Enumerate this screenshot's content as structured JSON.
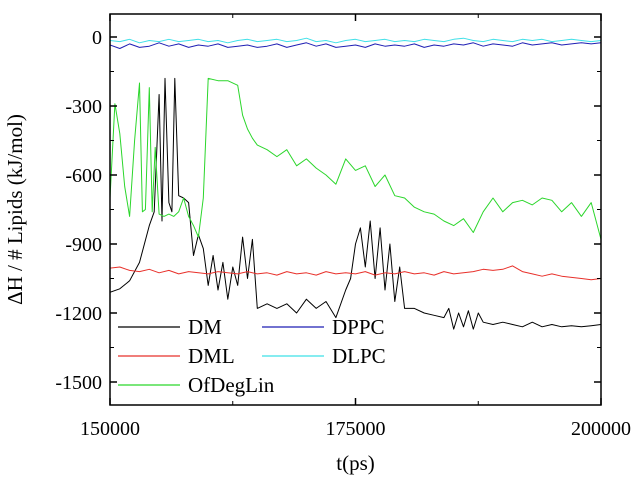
{
  "chart_data": {
    "type": "line",
    "title": "",
    "xlabel": "t(ps)",
    "ylabel": "ΔH / # Lipids (kJ/mol)",
    "xlim": [
      150000,
      200000
    ],
    "ylim": [
      -1600,
      100
    ],
    "x_ticks": [
      150000,
      175000,
      200000
    ],
    "x_tick_labels": [
      "150000",
      "175000",
      "200000"
    ],
    "y_ticks": [
      0,
      -300,
      -600,
      -900,
      -1200,
      -1500
    ],
    "y_tick_labels": [
      "0",
      "-300",
      "-600",
      "-900",
      "-1200",
      "-1500"
    ],
    "grid": false,
    "legend_position": "bottom-left",
    "series": [
      {
        "name": "DM",
        "color": "#000000",
        "x": [
          150000,
          151000,
          152000,
          153000,
          153500,
          154000,
          154500,
          155000,
          155300,
          155600,
          156000,
          156300,
          156600,
          157000,
          157500,
          158000,
          158500,
          159000,
          159500,
          160000,
          160500,
          161000,
          161500,
          162000,
          162500,
          163000,
          163500,
          164000,
          164500,
          165000,
          166000,
          167000,
          168000,
          169000,
          170000,
          171000,
          172000,
          173000,
          174000,
          174500,
          175000,
          175500,
          176000,
          176500,
          177000,
          177500,
          178000,
          178500,
          179000,
          179500,
          180000,
          181000,
          182000,
          183000,
          184000,
          184500,
          185000,
          185500,
          186000,
          186500,
          187000,
          187500,
          188000,
          189000,
          190000,
          191000,
          192000,
          193000,
          194000,
          195000,
          196000,
          197000,
          198000,
          199000,
          200000
        ],
        "values": [
          -1110,
          -1095,
          -1060,
          -980,
          -900,
          -820,
          -760,
          -250,
          -800,
          -180,
          -720,
          -760,
          -180,
          -690,
          -700,
          -720,
          -950,
          -860,
          -920,
          -1080,
          -950,
          -1100,
          -980,
          -1140,
          -1000,
          -1080,
          -870,
          -1050,
          -880,
          -1180,
          -1160,
          -1180,
          -1160,
          -1200,
          -1140,
          -1180,
          -1150,
          -1220,
          -1100,
          -1050,
          -900,
          -830,
          -1000,
          -800,
          -1050,
          -830,
          -1100,
          -900,
          -1150,
          -1000,
          -1180,
          -1180,
          -1200,
          -1210,
          -1220,
          -1180,
          -1270,
          -1200,
          -1260,
          -1190,
          -1270,
          -1200,
          -1240,
          -1250,
          -1240,
          -1250,
          -1260,
          -1240,
          -1260,
          -1250,
          -1260,
          -1255,
          -1260,
          -1255,
          -1250
        ]
      },
      {
        "name": "DPPC",
        "color": "#1f1fb4",
        "x": [
          150000,
          151000,
          152000,
          153000,
          154000,
          155000,
          156000,
          157000,
          158000,
          159000,
          160000,
          161000,
          162000,
          163000,
          164000,
          165000,
          166000,
          167000,
          168000,
          169000,
          170000,
          171000,
          172000,
          173000,
          174000,
          175000,
          176000,
          177000,
          178000,
          179000,
          180000,
          181000,
          182000,
          183000,
          184000,
          185000,
          186000,
          187000,
          188000,
          189000,
          190000,
          191000,
          192000,
          193000,
          194000,
          195000,
          196000,
          197000,
          198000,
          199000,
          200000
        ],
        "values": [
          -35,
          -50,
          -30,
          -45,
          -40,
          -25,
          -40,
          -30,
          -45,
          -35,
          -40,
          -30,
          -45,
          -40,
          -35,
          -45,
          -40,
          -30,
          -45,
          -35,
          -25,
          -40,
          -30,
          -45,
          -40,
          -35,
          -45,
          -30,
          -40,
          -35,
          -40,
          -30,
          -45,
          -35,
          -40,
          -30,
          -35,
          -25,
          -40,
          -30,
          -35,
          -40,
          -25,
          -35,
          -30,
          -25,
          -35,
          -30,
          -25,
          -30,
          -25
        ]
      },
      {
        "name": "DML",
        "color": "#e8302a",
        "x": [
          150000,
          151000,
          152000,
          153000,
          154000,
          155000,
          156000,
          157000,
          158000,
          159000,
          160000,
          161000,
          162000,
          163000,
          164000,
          165000,
          166000,
          167000,
          168000,
          169000,
          170000,
          171000,
          172000,
          173000,
          174000,
          175000,
          176000,
          177000,
          178000,
          179000,
          180000,
          181000,
          182000,
          183000,
          184000,
          185000,
          186000,
          187000,
          188000,
          189000,
          190000,
          191000,
          192000,
          193000,
          194000,
          195000,
          196000,
          197000,
          198000,
          199000,
          200000
        ],
        "values": [
          -1005,
          -1000,
          -1015,
          -1020,
          -1010,
          -1025,
          -1015,
          -1030,
          -1020,
          -1025,
          -1030,
          -1020,
          -1025,
          -1030,
          -1020,
          -1030,
          -1025,
          -1035,
          -1020,
          -1030,
          -1025,
          -1035,
          -1020,
          -1030,
          -1025,
          -1030,
          -1020,
          -1035,
          -1025,
          -1030,
          -1020,
          -1030,
          -1025,
          -1035,
          -1020,
          -1030,
          -1025,
          -1020,
          -1010,
          -1015,
          -1010,
          -995,
          -1020,
          -1030,
          -1040,
          -1030,
          -1040,
          -1045,
          -1050,
          -1055,
          -1050
        ]
      },
      {
        "name": "DLPC",
        "color": "#3fe0e8",
        "x": [
          150000,
          151000,
          152000,
          153000,
          154000,
          155000,
          156000,
          157000,
          158000,
          159000,
          160000,
          161000,
          162000,
          163000,
          164000,
          165000,
          166000,
          167000,
          168000,
          169000,
          170000,
          171000,
          172000,
          173000,
          174000,
          175000,
          176000,
          177000,
          178000,
          179000,
          180000,
          181000,
          182000,
          183000,
          184000,
          185000,
          186000,
          187000,
          188000,
          189000,
          190000,
          191000,
          192000,
          193000,
          194000,
          195000,
          196000,
          197000,
          198000,
          199000,
          200000
        ],
        "values": [
          -15,
          -20,
          -10,
          -25,
          -15,
          -20,
          -10,
          -20,
          -15,
          -10,
          -20,
          -15,
          -25,
          -15,
          -10,
          -20,
          -15,
          -10,
          -20,
          -15,
          -5,
          -20,
          -15,
          -25,
          -15,
          -10,
          -20,
          -15,
          -10,
          -20,
          -15,
          -20,
          -10,
          -15,
          -20,
          -10,
          -5,
          -15,
          -20,
          -10,
          -15,
          -20,
          -10,
          -15,
          -10,
          -20,
          -15,
          -10,
          -15,
          -20,
          -15
        ]
      },
      {
        "name": "OfDegLin",
        "color": "#2bd62b",
        "x": [
          150000,
          150500,
          151000,
          151500,
          152000,
          152500,
          153000,
          153300,
          153600,
          154000,
          154300,
          154600,
          155000,
          155500,
          156000,
          156500,
          157000,
          157500,
          158000,
          158500,
          159000,
          159500,
          160000,
          161000,
          162000,
          163000,
          163500,
          164000,
          164500,
          165000,
          166000,
          167000,
          168000,
          169000,
          170000,
          171000,
          172000,
          173000,
          174000,
          175000,
          176000,
          177000,
          178000,
          179000,
          180000,
          181000,
          182000,
          183000,
          184000,
          185000,
          186000,
          187000,
          188000,
          189000,
          190000,
          191000,
          192000,
          193000,
          194000,
          195000,
          196000,
          197000,
          198000,
          199000,
          200000
        ],
        "values": [
          -700,
          -290,
          -420,
          -650,
          -780,
          -450,
          -200,
          -760,
          -750,
          -220,
          -760,
          -480,
          -770,
          -780,
          -770,
          -780,
          -760,
          -700,
          -780,
          -820,
          -870,
          -700,
          -180,
          -190,
          -190,
          -210,
          -340,
          -400,
          -440,
          -470,
          -490,
          -520,
          -490,
          -560,
          -530,
          -570,
          -600,
          -640,
          -530,
          -580,
          -560,
          -650,
          -600,
          -690,
          -700,
          -740,
          -760,
          -770,
          -800,
          -820,
          -790,
          -850,
          -760,
          -700,
          -760,
          -720,
          -710,
          -730,
          -700,
          -710,
          -760,
          -720,
          -780,
          -720,
          -880
        ]
      }
    ]
  }
}
